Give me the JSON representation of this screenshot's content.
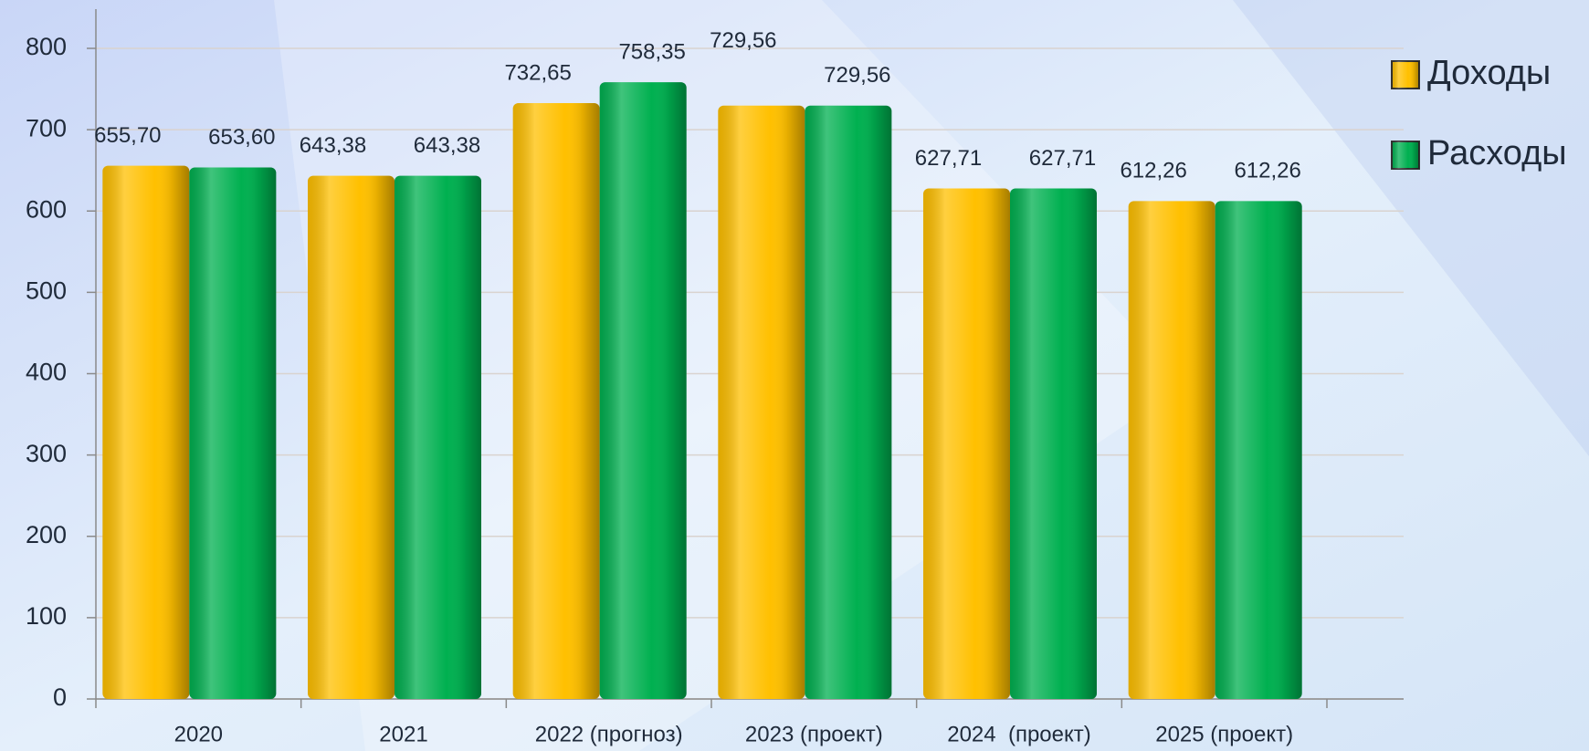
{
  "chart_data": {
    "type": "bar",
    "categories": [
      "2020",
      "2021",
      "2022 (прогноз)",
      "2023 (проект)",
      "2024  (проект)",
      "2025 (проект)"
    ],
    "series": [
      {
        "name": "Доходы",
        "color": "#ffc000",
        "values": [
          655.7,
          643.38,
          732.65,
          729.56,
          627.71,
          612.26
        ],
        "value_labels": [
          "655,70",
          "643,38",
          "732,65",
          "729,56",
          "627,71",
          "612,26"
        ]
      },
      {
        "name": "Расходы",
        "color": "#00b050",
        "values": [
          653.6,
          643.38,
          758.35,
          729.56,
          627.71,
          612.26
        ],
        "value_labels": [
          "653,60",
          "643,38",
          "758,35",
          "729,56",
          "627,71",
          "612,26"
        ]
      }
    ],
    "ylim": [
      0,
      800
    ],
    "yticks": [
      0,
      100,
      200,
      300,
      400,
      500,
      600,
      700,
      800
    ],
    "grid": true,
    "legend": "right"
  }
}
